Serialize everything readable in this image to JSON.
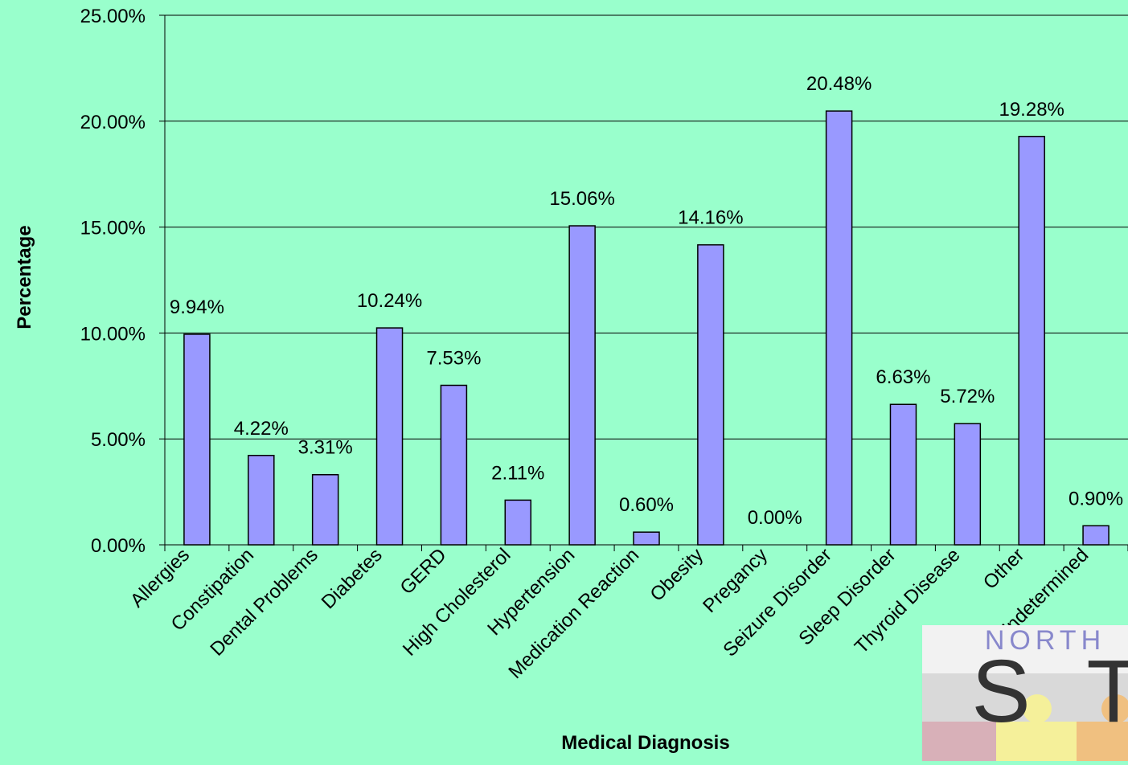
{
  "chart_data": {
    "type": "bar",
    "x_label": "Medical Diagnosis",
    "y_label": "Percentage",
    "categories": [
      "Allergies",
      "Constipation",
      "Dental Problems",
      "Diabetes",
      "GERD",
      "High Cholesterol",
      "Hypertension",
      "Medication Reaction",
      "Obesity",
      "Pregancy",
      "Seizure Disorder",
      "Sleep Disorder",
      "Thyroid Disease",
      "Other",
      "Undetermined"
    ],
    "values": [
      9.94,
      4.22,
      3.31,
      10.24,
      7.53,
      2.11,
      15.06,
      0.6,
      14.16,
      0.0,
      20.48,
      6.63,
      5.72,
      19.28,
      0.9
    ],
    "value_labels": [
      "9.94%",
      "4.22%",
      "3.31%",
      "10.24%",
      "7.53%",
      "2.11%",
      "15.06%",
      "0.60%",
      "14.16%",
      "0.00%",
      "20.48%",
      "6.63%",
      "5.72%",
      "19.28%",
      "0.90%"
    ],
    "color": "#9999ff",
    "ylim": [
      0,
      25
    ],
    "yticks": [
      {
        "value": 0,
        "label": "0.00%"
      },
      {
        "value": 5,
        "label": "5.00%"
      },
      {
        "value": 10,
        "label": "10.00%"
      },
      {
        "value": 15,
        "label": "15.00%"
      },
      {
        "value": 20,
        "label": "20.00%"
      },
      {
        "value": 25,
        "label": "25.00%"
      }
    ],
    "grid": true
  },
  "logo": {
    "top": "NORTH",
    "letter1": "S",
    "letter2": "T"
  }
}
